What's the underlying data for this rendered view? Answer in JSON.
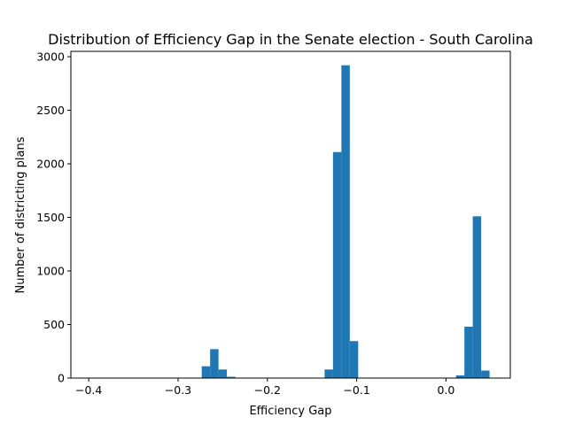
{
  "chart_data": {
    "type": "bar",
    "title": "Distribution of Efficiency Gap in the Senate election - South Carolina",
    "xlabel": "Efficiency Gap",
    "ylabel": "Number of districting plans",
    "xlim": [
      -0.42,
      0.072
    ],
    "ylim": [
      0,
      3050
    ],
    "x_ticks": [
      -0.4,
      -0.3,
      -0.2,
      -0.1,
      0.0
    ],
    "x_tick_labels": [
      "−0.4",
      "−0.3",
      "−0.2",
      "−0.1",
      "0.0"
    ],
    "y_ticks": [
      0,
      500,
      1000,
      1500,
      2000,
      2500,
      3000
    ],
    "y_tick_labels": [
      "0",
      "500",
      "1000",
      "1500",
      "2000",
      "2500",
      "3000"
    ],
    "bar_color": "#1f77b4",
    "grid": false,
    "bins": [
      {
        "x0": -0.2735,
        "x1": -0.2641,
        "value": 110
      },
      {
        "x0": -0.2641,
        "x1": -0.2547,
        "value": 270
      },
      {
        "x0": -0.2547,
        "x1": -0.2453,
        "value": 80
      },
      {
        "x0": -0.2453,
        "x1": -0.2359,
        "value": 12
      },
      {
        "x0": -0.1359,
        "x1": -0.1265,
        "value": 80
      },
      {
        "x0": -0.1265,
        "x1": -0.1171,
        "value": 2110
      },
      {
        "x0": -0.1171,
        "x1": -0.1077,
        "value": 2920
      },
      {
        "x0": -0.1077,
        "x1": -0.0983,
        "value": 345
      },
      {
        "x0": 0.0112,
        "x1": 0.0206,
        "value": 25
      },
      {
        "x0": 0.0206,
        "x1": 0.03,
        "value": 480
      },
      {
        "x0": 0.03,
        "x1": 0.0394,
        "value": 1510
      },
      {
        "x0": 0.0394,
        "x1": 0.0488,
        "value": 70
      }
    ]
  }
}
